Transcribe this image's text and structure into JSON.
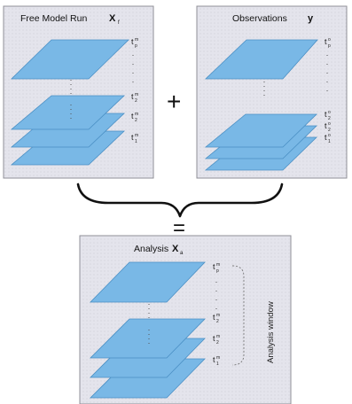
{
  "panels": {
    "free_run": {
      "title": "Free Model Run",
      "symbol": "X",
      "symbol_sub": "f"
    },
    "observations": {
      "title": "Observations",
      "symbol": "y"
    },
    "analysis": {
      "title": "Analysis",
      "symbol": "X",
      "symbol_sub": "a",
      "window_label": "Analysis window"
    }
  },
  "time_labels": {
    "base": "t",
    "free_run": [
      {
        "sub": "p",
        "sup": "m"
      },
      {
        "sub": "2",
        "sup": "m"
      },
      {
        "sub": "2",
        "sup": "m"
      },
      {
        "sub": "1",
        "sup": "m"
      }
    ],
    "observations": [
      {
        "sub": "p",
        "sup": "o"
      },
      {
        "sub": "2",
        "sup": "o"
      },
      {
        "sub": "2",
        "sup": "o"
      },
      {
        "sub": "1",
        "sup": "o"
      }
    ],
    "analysis": [
      {
        "sub": "p",
        "sup": "m"
      },
      {
        "sub": "2",
        "sup": "m"
      },
      {
        "sub": "2",
        "sup": "m"
      },
      {
        "sub": "1",
        "sup": "m"
      }
    ]
  },
  "operators": {
    "plus": "+",
    "equals": "="
  },
  "colors": {
    "layer_fill": "#79b8e6",
    "layer_stroke": "#4a8fc4",
    "panel_bg": "#e4e4ec",
    "panel_border": "#8f8f97"
  }
}
